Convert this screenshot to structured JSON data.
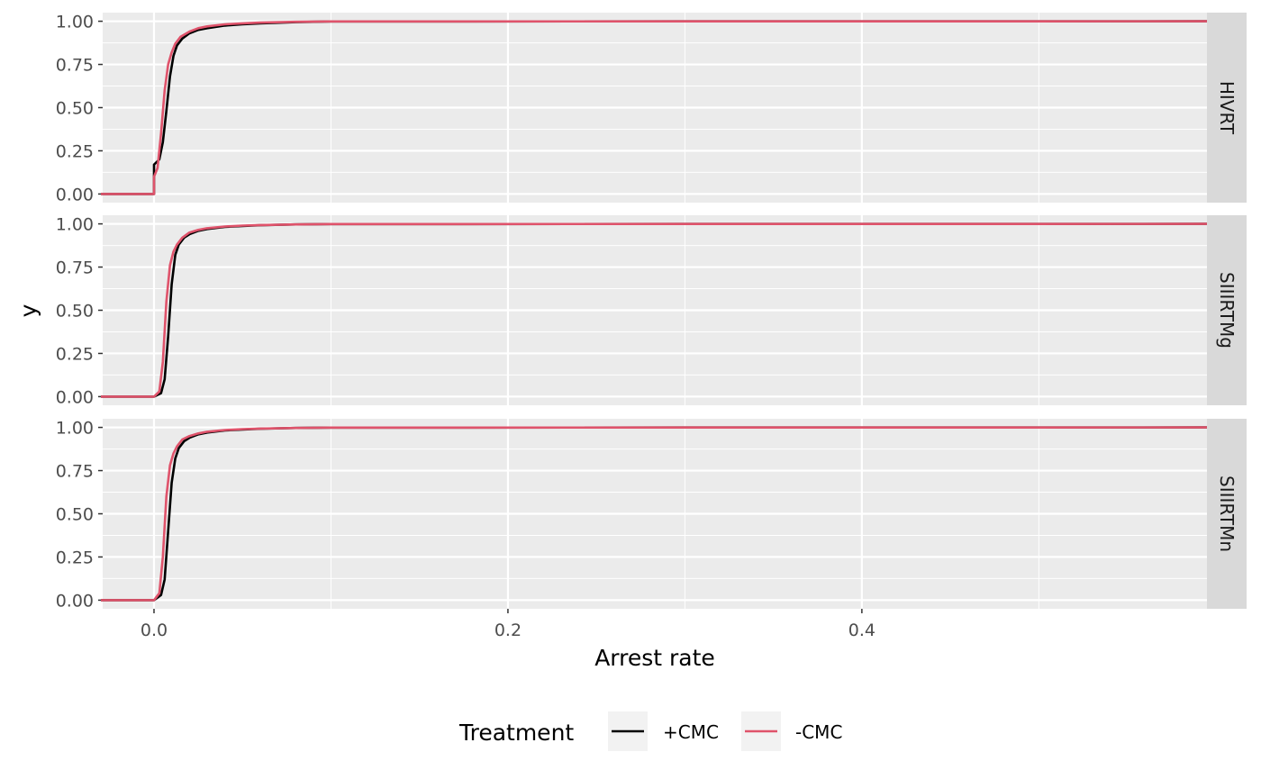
{
  "chart_data": {
    "type": "line",
    "xlabel": "Arrest rate",
    "ylabel": "y",
    "xlim": [
      -0.029,
      0.595
    ],
    "ylim": [
      -0.05,
      1.05
    ],
    "x_ticks": [
      0.0,
      0.2,
      0.4
    ],
    "x_tick_labels": [
      "0.0",
      "0.2",
      "0.4"
    ],
    "y_ticks": [
      0,
      0.25,
      0.5,
      0.75,
      1.0
    ],
    "y_tick_labels": [
      "0.00",
      "0.25",
      "0.50",
      "0.75",
      "1.00"
    ],
    "grid": true,
    "legend": {
      "title": "Treatment",
      "position": "bottom",
      "entries": [
        {
          "label": "+CMC",
          "color": "#000000"
        },
        {
          "label": "-CMC",
          "color": "#DF536B"
        }
      ]
    },
    "panels": [
      {
        "strip": "HIVRT",
        "series": [
          {
            "name": "+CMC",
            "color": "#000000",
            "x": [
              -0.03,
              0.0,
              0.0,
              0.003,
              0.005,
              0.007,
              0.009,
              0.011,
              0.013,
              0.016,
              0.02,
              0.025,
              0.03,
              0.04,
              0.05,
              0.06,
              0.08,
              0.1,
              0.595
            ],
            "y": [
              0,
              0,
              0.17,
              0.2,
              0.3,
              0.48,
              0.68,
              0.8,
              0.86,
              0.9,
              0.93,
              0.95,
              0.96,
              0.975,
              0.983,
              0.988,
              0.995,
              0.999,
              1.0
            ]
          },
          {
            "name": "-CMC",
            "color": "#DF536B",
            "x": [
              -0.03,
              0.0,
              0.0,
              0.002,
              0.004,
              0.006,
              0.008,
              0.01,
              0.012,
              0.015,
              0.02,
              0.025,
              0.03,
              0.04,
              0.05,
              0.06,
              0.08,
              0.1,
              0.595
            ],
            "y": [
              0,
              0,
              0.1,
              0.15,
              0.35,
              0.6,
              0.75,
              0.82,
              0.87,
              0.91,
              0.94,
              0.96,
              0.97,
              0.982,
              0.988,
              0.992,
              0.997,
              0.999,
              1.0
            ]
          }
        ]
      },
      {
        "strip": "SIIIRTMg",
        "series": [
          {
            "name": "+CMC",
            "color": "#000000",
            "x": [
              -0.03,
              0.0,
              0.004,
              0.006,
              0.008,
              0.01,
              0.012,
              0.014,
              0.017,
              0.02,
              0.025,
              0.03,
              0.04,
              0.05,
              0.06,
              0.08,
              0.1,
              0.595
            ],
            "y": [
              0,
              0,
              0.02,
              0.1,
              0.35,
              0.65,
              0.82,
              0.88,
              0.92,
              0.94,
              0.96,
              0.97,
              0.982,
              0.988,
              0.992,
              0.997,
              0.999,
              1.0
            ]
          },
          {
            "name": "-CMC",
            "color": "#DF536B",
            "x": [
              -0.03,
              0.0,
              0.003,
              0.005,
              0.007,
              0.009,
              0.011,
              0.013,
              0.016,
              0.02,
              0.025,
              0.03,
              0.04,
              0.05,
              0.06,
              0.08,
              0.1,
              0.595
            ],
            "y": [
              0,
              0,
              0.03,
              0.2,
              0.55,
              0.76,
              0.84,
              0.88,
              0.92,
              0.95,
              0.965,
              0.975,
              0.985,
              0.99,
              0.993,
              0.997,
              0.999,
              1.0
            ]
          }
        ]
      },
      {
        "strip": "SIIIRTMn",
        "series": [
          {
            "name": "+CMC",
            "color": "#000000",
            "x": [
              -0.03,
              0.0,
              0.004,
              0.006,
              0.008,
              0.01,
              0.012,
              0.014,
              0.017,
              0.02,
              0.025,
              0.03,
              0.04,
              0.05,
              0.06,
              0.08,
              0.1,
              0.595
            ],
            "y": [
              0,
              0,
              0.03,
              0.12,
              0.4,
              0.68,
              0.82,
              0.88,
              0.92,
              0.94,
              0.96,
              0.97,
              0.982,
              0.988,
              0.992,
              0.997,
              0.999,
              1.0
            ]
          },
          {
            "name": "-CMC",
            "color": "#DF536B",
            "x": [
              -0.03,
              0.0,
              0.003,
              0.005,
              0.007,
              0.009,
              0.011,
              0.013,
              0.016,
              0.02,
              0.025,
              0.03,
              0.04,
              0.05,
              0.06,
              0.08,
              0.1,
              0.595
            ],
            "y": [
              0,
              0,
              0.04,
              0.25,
              0.6,
              0.78,
              0.85,
              0.89,
              0.93,
              0.95,
              0.965,
              0.975,
              0.985,
              0.99,
              0.993,
              0.997,
              0.999,
              1.0
            ]
          }
        ]
      }
    ]
  }
}
